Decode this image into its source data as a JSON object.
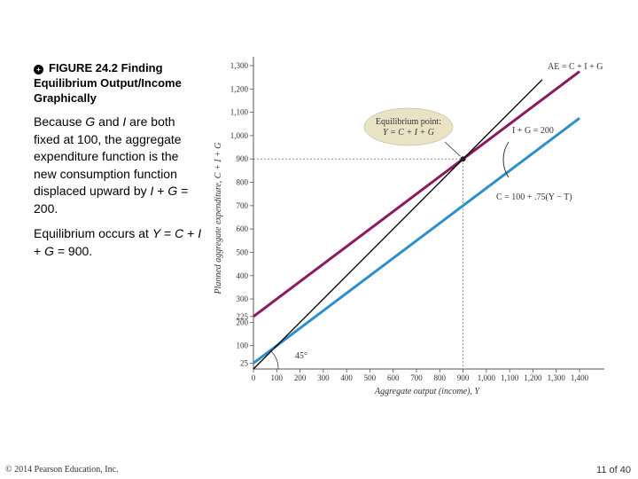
{
  "figure": {
    "title": "FIGURE 24.2  Finding Equilibrium Output/Income Graphically",
    "icon": "figure-bullet-icon",
    "para1": {
      "before_g": "Because ",
      "g": "G",
      "and": " and ",
      "i": "I",
      "rest": " are both fixed at 100, the aggregate expenditure function is the new consumption function displaced upward by ",
      "i2": "I",
      "plus": " + ",
      "g2": "G",
      "eq": " = 200."
    },
    "para2": {
      "before": "Equilibrium occurs at ",
      "y": "Y",
      "eq1": " = ",
      "c": "C",
      "p1": " + ",
      "i": "I",
      "p2": " + ",
      "g": "G",
      "eq2": " = 900."
    }
  },
  "footer": {
    "copyright": "© 2014 Pearson Education, Inc.",
    "page": "11 of 40"
  },
  "chart_data": {
    "type": "line",
    "xlabel": "Aggregate output (income), Y",
    "ylabel": "Planned aggregate expenditure, C + I + G",
    "xlim": [
      0,
      1400
    ],
    "ylim": [
      0,
      1300
    ],
    "x_ticks": [
      0,
      100,
      200,
      300,
      400,
      500,
      600,
      700,
      800,
      900,
      1000,
      1100,
      1200,
      1300,
      1400
    ],
    "x_tick_labels": [
      "0",
      "100",
      "200",
      "300",
      "400",
      "500",
      "600",
      "700",
      "800",
      "900",
      "1,000",
      "1,100",
      "1,200",
      "1,300",
      "1,400"
    ],
    "y_ticks": [
      25,
      100,
      200,
      225,
      300,
      400,
      500,
      600,
      700,
      800,
      900,
      1000,
      1100,
      1200,
      1300
    ],
    "y_tick_labels": [
      "25",
      "100",
      "200",
      "225",
      "300",
      "400",
      "500",
      "600",
      "700",
      "800",
      "900",
      "1,000",
      "1,100",
      "1,200",
      "1,300"
    ],
    "series": [
      {
        "name": "AE = C + I + G",
        "color": "#8b1a5c",
        "x": [
          0,
          1400
        ],
        "y": [
          225,
          1275
        ]
      },
      {
        "name": "C = 100 + .75(Y − T)",
        "color": "#2e8fc8",
        "x": [
          0,
          1400
        ],
        "y": [
          25,
          1075
        ]
      },
      {
        "name": "45°",
        "color": "#000000",
        "x": [
          0,
          1240
        ],
        "y": [
          0,
          1240
        ]
      }
    ],
    "equilibrium": {
      "x": 900,
      "y": 900
    },
    "annotations": {
      "ae_label": "AE = C + I + G",
      "c_label": "C = 100 + .75(Y − T)",
      "ig_label": "I + G = 200",
      "eq_title": "Equilibrium point:",
      "eq_formula": "Y = C + I + G",
      "angle_label": "45°"
    },
    "colors": {
      "ae": "#8b1a5c",
      "consumption": "#2e8fc8",
      "diagonal": "#000000",
      "callout_fill": "#e9e3c6"
    }
  }
}
